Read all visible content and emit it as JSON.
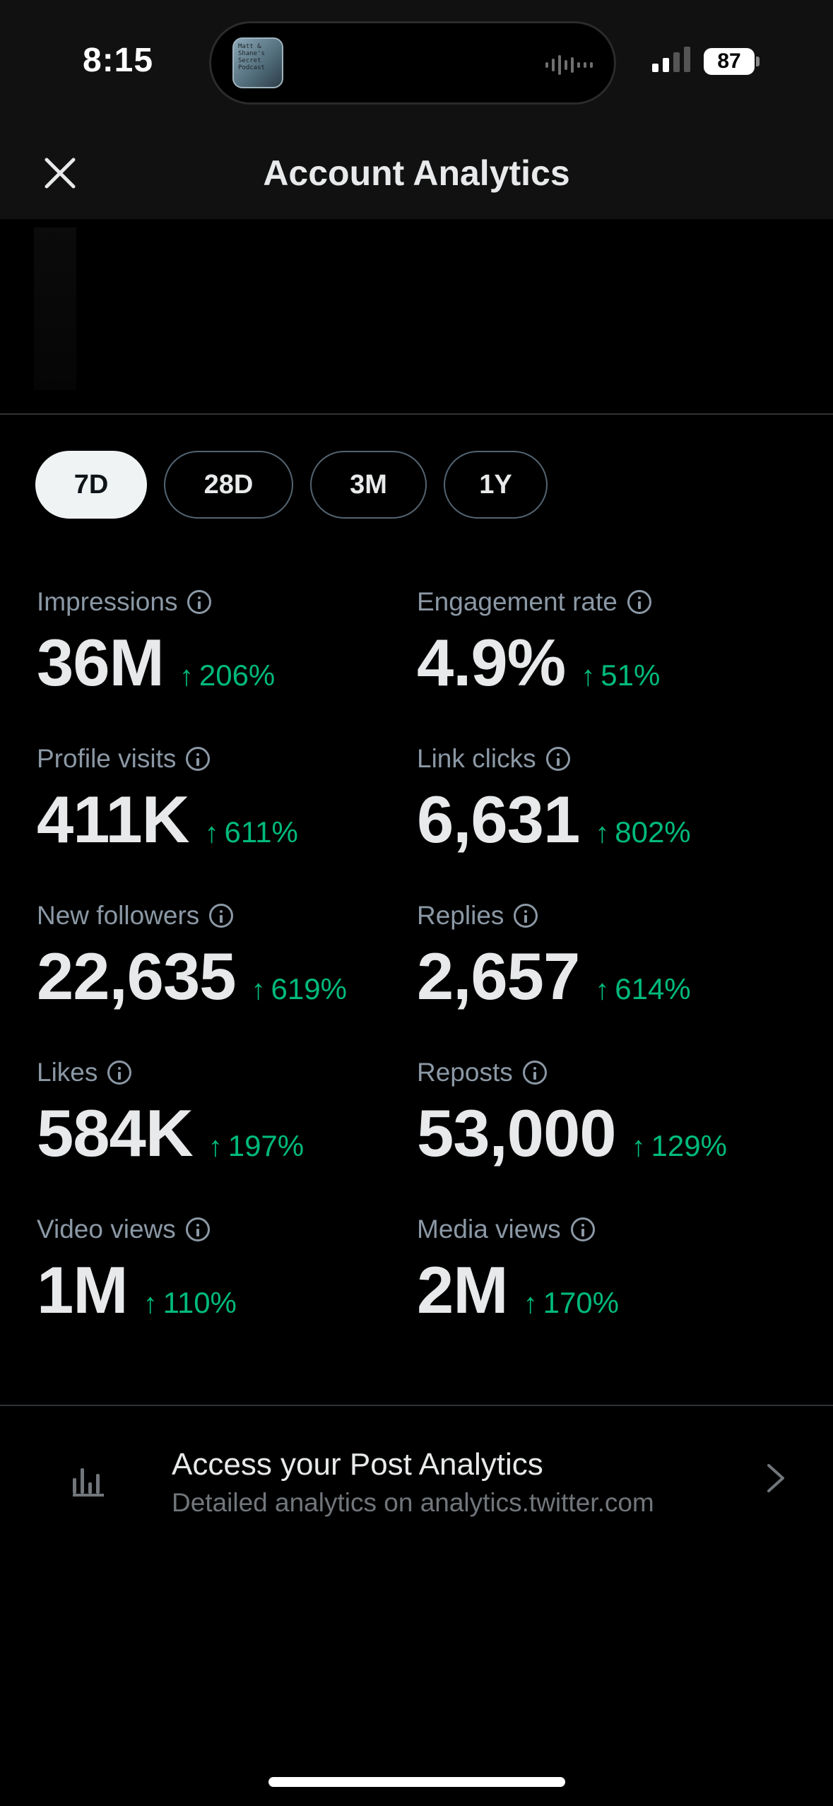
{
  "status_bar": {
    "time": "8:15",
    "battery": "87",
    "island_thumb_text": "Matt & Shane's Secret Podcast"
  },
  "header": {
    "title": "Account Analytics",
    "close_icon": "close-icon"
  },
  "periods": [
    {
      "label": "7D",
      "active": true
    },
    {
      "label": "28D",
      "active": false
    },
    {
      "label": "3M",
      "active": false
    },
    {
      "label": "1Y",
      "active": false
    }
  ],
  "metrics": [
    {
      "label": "Impressions",
      "value": "36M",
      "change": "206%"
    },
    {
      "label": "Engagement rate",
      "value": "4.9%",
      "change": "51%"
    },
    {
      "label": "Profile visits",
      "value": "411K",
      "change": "611%"
    },
    {
      "label": "Link clicks",
      "value": "6,631",
      "change": "802%"
    },
    {
      "label": "New followers",
      "value": "22,635",
      "change": "619%"
    },
    {
      "label": "Replies",
      "value": "2,657",
      "change": "614%"
    },
    {
      "label": "Likes",
      "value": "584K",
      "change": "197%"
    },
    {
      "label": "Reposts",
      "value": "53,000",
      "change": "129%"
    },
    {
      "label": "Video views",
      "value": "1M",
      "change": "110%"
    },
    {
      "label": "Media views",
      "value": "2M",
      "change": "170%"
    }
  ],
  "post_analytics": {
    "title": "Access your Post Analytics",
    "subtitle": "Detailed analytics on analytics.twitter.com",
    "icon": "bar-chart-icon"
  },
  "colors": {
    "background": "#000000",
    "header_bg": "#111111",
    "positive": "#00ba7c",
    "muted_text": "#8b98a5",
    "primary_text": "#e7e9ea"
  }
}
